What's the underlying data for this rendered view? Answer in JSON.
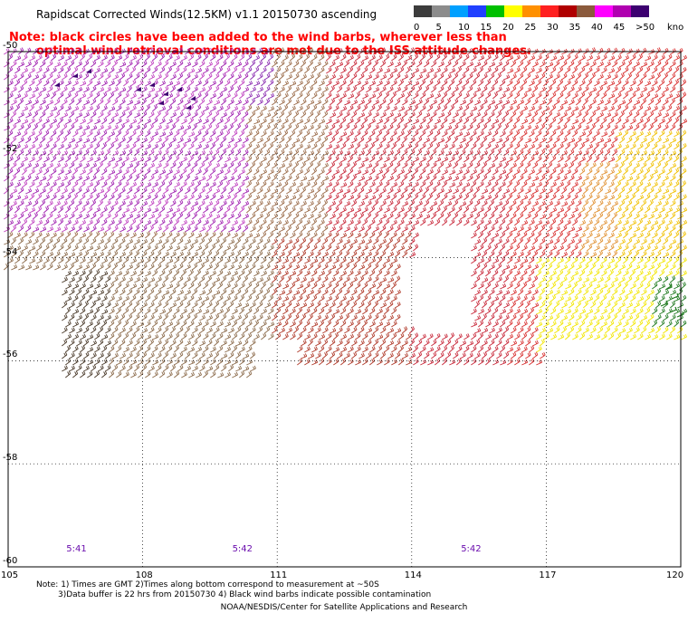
{
  "title": "Rapidscat Corrected Winds(12.5KM) v1.1 20150730 ascending",
  "note": {
    "line1": "Note: black circles have been added to the wind barbs, wherever less than",
    "line2": "optimal wind retrieval conditions are met due to the ISS attitude changes."
  },
  "legend": {
    "unit": "knots",
    "ticks": [
      "0",
      "5",
      "10",
      "15",
      "20",
      "25",
      "30",
      "35",
      "40",
      "45",
      ">50"
    ],
    "colors": [
      "#3c3c3c",
      "#8c8c8c",
      "#00a0ff",
      "#2040ff",
      "#00c000",
      "#ffff00",
      "#ff9000",
      "#ff2020",
      "#b00000",
      "#8b5a3c",
      "#ff00ff",
      "#b000b0",
      "#3c0070"
    ]
  },
  "map": {
    "lat_labels": [
      "-50",
      "-52",
      "-54",
      "-56",
      "-58",
      "-60"
    ],
    "lon_labels": [
      "105",
      "108",
      "111",
      "114",
      "117",
      "120"
    ],
    "lat_values": [
      -50,
      -52,
      -54,
      -56,
      -58,
      -60
    ],
    "lon_values": [
      105,
      108,
      111,
      114,
      117,
      120
    ],
    "time_labels": [
      {
        "text": "5:41",
        "lon": 106.5
      },
      {
        "text": "5:42",
        "lon": 110.2
      },
      {
        "text": "5:42",
        "lon": 115.3
      }
    ]
  },
  "footer": {
    "line1": "Note: 1) Times are GMT 2)Times along bottom correspond to measurement at ~50S",
    "line2": "3)Data buffer is 22 hrs from 20150730 4) Black wind barbs indicate possible contamination",
    "line3": "NOAA/NESDIS/Center for Satellite Applications and Research"
  }
}
